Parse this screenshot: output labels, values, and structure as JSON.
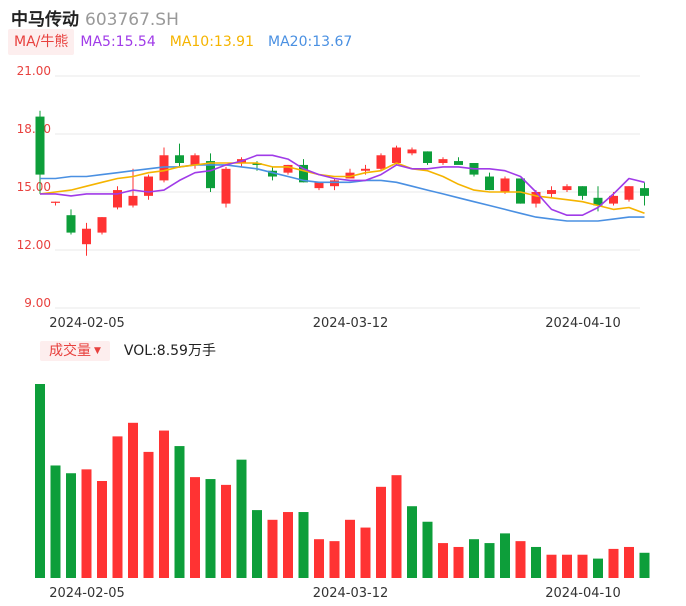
{
  "header": {
    "name": "中马传动",
    "code": "603767.SH"
  },
  "ma_legend": {
    "badge": "MA/牛熊",
    "items": [
      {
        "text": "MA5:15.54",
        "color": "#a03be8"
      },
      {
        "text": "MA10:13.91",
        "color": "#f5b400"
      },
      {
        "text": "MA20:13.67",
        "color": "#4a90e2"
      }
    ]
  },
  "volume_legend": {
    "badge": "成交量",
    "value": "VOL:8.59万手"
  },
  "colors": {
    "up": "#ff3333",
    "down": "#0d9e3a",
    "axis_text": "#e8413e",
    "grid": "#e8e8e8",
    "date_text": "#333333"
  },
  "chart_data": [
    {
      "type": "candlestick",
      "ylim": [
        9,
        21
      ],
      "yticks": [
        "21.00",
        "18.00",
        "15.00",
        "12.00",
        "9.00"
      ],
      "xtick_labels": [
        {
          "index": 2,
          "label": "2024-02-05"
        },
        {
          "index": 19,
          "label": "2024-03-12"
        },
        {
          "index": 34,
          "label": "2024-04-10"
        }
      ],
      "ohlc": [
        [
          18.9,
          19.2,
          14.9,
          15.9
        ],
        [
          14.5,
          14.5,
          14.3,
          14.5
        ],
        [
          13.8,
          14.1,
          12.8,
          12.9
        ],
        [
          12.3,
          13.4,
          11.7,
          13.1
        ],
        [
          12.9,
          13.7,
          12.8,
          13.7
        ],
        [
          14.2,
          15.3,
          14.1,
          15.1
        ],
        [
          14.3,
          16.2,
          14.2,
          14.8
        ],
        [
          14.8,
          15.9,
          14.6,
          15.8
        ],
        [
          15.6,
          17.3,
          15.5,
          16.9
        ],
        [
          16.9,
          17.5,
          16.3,
          16.5
        ],
        [
          16.4,
          17.0,
          16.2,
          16.9
        ],
        [
          16.6,
          17.0,
          15.0,
          15.2
        ],
        [
          14.4,
          16.3,
          14.2,
          16.2
        ],
        [
          16.5,
          16.8,
          16.3,
          16.7
        ],
        [
          16.5,
          16.6,
          16.1,
          16.4
        ],
        [
          16.1,
          16.3,
          15.6,
          15.8
        ],
        [
          16.0,
          16.4,
          15.9,
          16.4
        ],
        [
          16.4,
          16.7,
          15.5,
          15.5
        ],
        [
          15.2,
          15.5,
          15.1,
          15.5
        ],
        [
          15.3,
          15.7,
          15.1,
          15.6
        ],
        [
          15.7,
          16.2,
          15.7,
          16.0
        ],
        [
          16.1,
          16.4,
          15.9,
          16.2
        ],
        [
          16.2,
          17.0,
          16.1,
          16.9
        ],
        [
          16.5,
          17.4,
          16.4,
          17.3
        ],
        [
          17.0,
          17.3,
          16.9,
          17.2
        ],
        [
          17.1,
          17.1,
          16.4,
          16.5
        ],
        [
          16.5,
          16.8,
          16.4,
          16.7
        ],
        [
          16.6,
          16.8,
          16.5,
          16.4
        ],
        [
          16.5,
          16.5,
          15.8,
          15.9
        ],
        [
          15.8,
          16.0,
          15.1,
          15.1
        ],
        [
          15.0,
          15.8,
          14.9,
          15.7
        ],
        [
          15.7,
          15.7,
          14.4,
          14.4
        ],
        [
          14.4,
          15.1,
          14.2,
          15.0
        ],
        [
          14.9,
          15.3,
          14.7,
          15.1
        ],
        [
          15.1,
          15.4,
          15.0,
          15.3
        ],
        [
          15.3,
          15.3,
          14.6,
          14.8
        ],
        [
          14.7,
          15.3,
          14.0,
          14.3
        ],
        [
          14.4,
          15.0,
          14.3,
          14.8
        ],
        [
          14.6,
          15.3,
          14.5,
          15.3
        ],
        [
          15.2,
          15.5,
          14.3,
          14.8
        ]
      ],
      "ma5": [
        14.9,
        14.9,
        14.8,
        14.9,
        14.9,
        14.9,
        15.1,
        15.0,
        15.1,
        15.6,
        16.0,
        16.1,
        16.4,
        16.6,
        16.9,
        16.9,
        16.7,
        16.2,
        15.9,
        15.7,
        15.6,
        15.6,
        15.9,
        16.4,
        16.2,
        16.2,
        16.3,
        16.3,
        16.2,
        16.2,
        16.1,
        15.8,
        15.0,
        14.1,
        13.8,
        13.8,
        14.2,
        14.9,
        15.7,
        15.5
      ],
      "ma10": [
        14.9,
        15.0,
        15.1,
        15.3,
        15.5,
        15.7,
        15.8,
        16.0,
        16.1,
        16.3,
        16.4,
        16.5,
        16.5,
        16.5,
        16.5,
        16.3,
        16.3,
        16.1,
        15.9,
        15.8,
        15.8,
        16.0,
        16.1,
        16.5,
        16.2,
        16.1,
        15.8,
        15.4,
        15.1,
        15.0,
        15.0,
        15.0,
        14.8,
        14.7,
        14.6,
        14.5,
        14.3,
        14.1,
        14.2,
        13.9
      ],
      "ma20": [
        15.7,
        15.7,
        15.8,
        15.8,
        15.9,
        16.0,
        16.1,
        16.2,
        16.3,
        16.3,
        16.4,
        16.4,
        16.4,
        16.3,
        16.2,
        16.0,
        15.8,
        15.6,
        15.5,
        15.5,
        15.5,
        15.6,
        15.6,
        15.5,
        15.3,
        15.1,
        14.9,
        14.7,
        14.5,
        14.3,
        14.1,
        13.9,
        13.7,
        13.6,
        13.5,
        13.5,
        13.5,
        13.6,
        13.7,
        13.7
      ]
    },
    {
      "type": "bar",
      "series_name": "成交量",
      "ylim": [
        0,
        100
      ],
      "up": [
        0,
        0,
        0,
        1,
        1,
        1,
        1,
        1,
        1,
        0,
        1,
        0,
        1,
        0,
        0,
        1,
        1,
        0,
        1,
        1,
        1,
        1,
        1,
        1,
        0,
        0,
        1,
        1,
        0,
        0,
        0,
        1,
        0,
        1,
        1,
        1,
        0,
        1,
        1,
        0
      ],
      "values": [
        100,
        58,
        54,
        56,
        50,
        73,
        80,
        65,
        76,
        68,
        52,
        51,
        48,
        61,
        35,
        30,
        34,
        34,
        20,
        19,
        30,
        26,
        47,
        53,
        37,
        29,
        18,
        16,
        20,
        18,
        23,
        19,
        16,
        12,
        12,
        12,
        10,
        15,
        16,
        13
      ],
      "xtick_labels": [
        {
          "index": 2,
          "label": "2024-02-05"
        },
        {
          "index": 19,
          "label": "2024-03-12"
        },
        {
          "index": 34,
          "label": "2024-04-10"
        }
      ]
    }
  ]
}
